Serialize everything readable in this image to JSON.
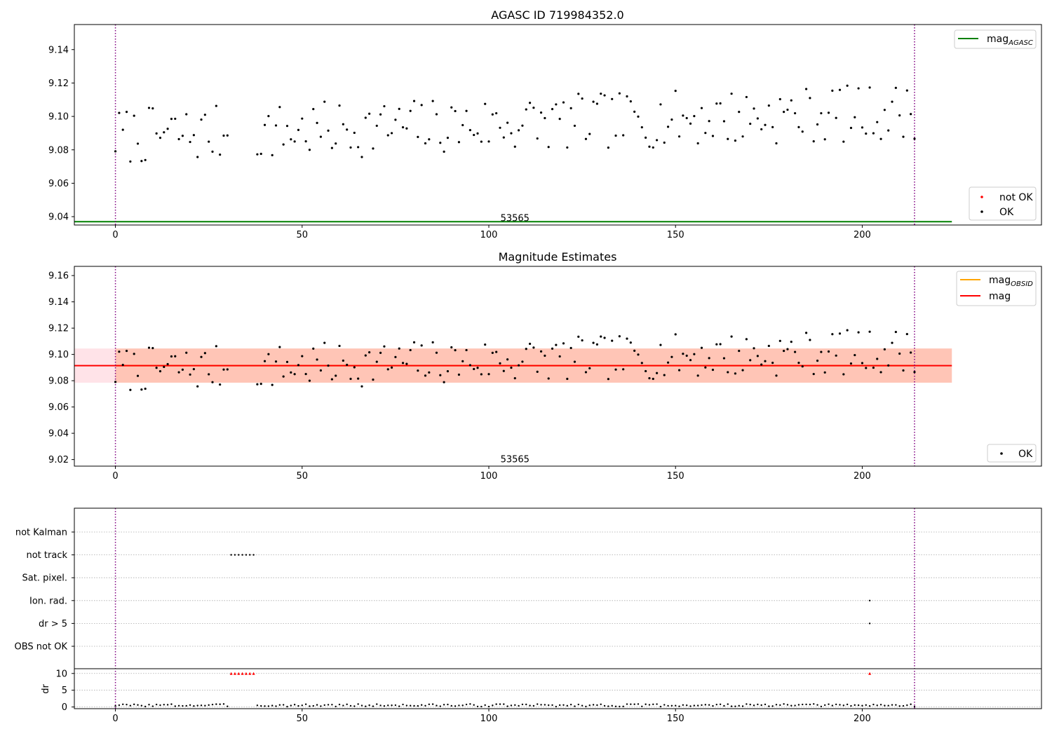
{
  "chart_data": [
    {
      "type": "scatter",
      "title": "AGASC ID 719984352.0",
      "xlim": [
        -11,
        248
      ],
      "ylim": [
        9.035,
        9.155
      ],
      "x_ticks": [
        0,
        50,
        100,
        150,
        200
      ],
      "y_ticks": [
        9.04,
        9.06,
        9.08,
        9.1,
        9.12,
        9.14
      ],
      "y_tick_labels": [
        "9.04",
        "9.06",
        "9.08",
        "9.10",
        "9.12",
        "9.14"
      ],
      "vlines": [
        0,
        214
      ],
      "obsid_label": {
        "text": "53565",
        "x": 107,
        "y": 9.039
      },
      "hline": {
        "name": "mag_AGASC",
        "value": 9.037,
        "x_range": [
          -11,
          224
        ],
        "color": "#008000"
      },
      "legend_lines": [
        {
          "base": "mag",
          "sub": "AGASC",
          "color": "#008000"
        }
      ],
      "legend_markers": [
        {
          "label": "not OK",
          "color": "#ff0000"
        },
        {
          "label": "OK",
          "color": "#000000"
        }
      ],
      "series": [
        {
          "name": "OK",
          "color": "#000000",
          "x_range": [
            0,
            214
          ],
          "x_gap": [
            30,
            38
          ],
          "trend": [
            9.088,
            9.103
          ],
          "seed": 7
        }
      ]
    },
    {
      "type": "scatter",
      "title": "Magnitude Estimates",
      "xlim": [
        -11,
        248
      ],
      "ylim": [
        9.015,
        9.167
      ],
      "x_ticks": [
        0,
        50,
        100,
        150,
        200
      ],
      "y_ticks": [
        9.02,
        9.04,
        9.06,
        9.08,
        9.1,
        9.12,
        9.14,
        9.16
      ],
      "y_tick_labels": [
        "9.02",
        "9.04",
        "9.06",
        "9.08",
        "9.10",
        "9.12",
        "9.14",
        "9.16"
      ],
      "vlines": [
        0,
        214
      ],
      "obsid_label": {
        "text": "53565",
        "x": 107,
        "y": 9.02
      },
      "band_outer": {
        "low": 9.0785,
        "high": 9.1045,
        "x_range": [
          -11,
          224
        ],
        "color": "#ffc0cb"
      },
      "band_inner": {
        "low": 9.0785,
        "high": 9.1045,
        "x_range": [
          0,
          224
        ],
        "color": "#ffa07a"
      },
      "mag_line": {
        "value": 9.0915,
        "x_range": [
          -11,
          224
        ],
        "color": "#ff0000"
      },
      "obsid_line": {
        "value": 9.0915,
        "x_range": [
          0,
          214
        ],
        "color": "#ffa500"
      },
      "legend_lines": [
        {
          "base": "mag",
          "sub": "OBSID",
          "color": "#ffa500"
        },
        {
          "base": "mag",
          "sub": "",
          "color": "#ff0000"
        }
      ],
      "legend_markers": [
        {
          "label": "OK",
          "color": "#000000"
        }
      ],
      "series": [
        {
          "name": "OK",
          "color": "#000000",
          "x_range": [
            0,
            214
          ],
          "x_gap": [
            30,
            38
          ],
          "trend": [
            9.088,
            9.103
          ],
          "seed": 7
        }
      ]
    },
    {
      "type": "scatter",
      "title": "",
      "xlim": [
        -11,
        248
      ],
      "x_ticks": [
        0,
        50,
        100,
        150,
        200
      ],
      "vlines": [
        0,
        214
      ],
      "flag_rows": [
        "not Kalman",
        "not track",
        "Sat. pixel.",
        "Ion. rad.",
        "dr > 5",
        "OBS not OK"
      ],
      "flag_points": [
        {
          "row": "not track",
          "x": [
            31,
            32,
            33,
            34,
            35,
            36,
            37
          ]
        },
        {
          "row": "Ion. rad.",
          "x": [
            202
          ]
        },
        {
          "row": "dr > 5",
          "x": [
            202
          ]
        }
      ],
      "dr_ylabel": "dr",
      "dr_ylim": [
        -0.5,
        11
      ],
      "dr_y_ticks": [
        0,
        5,
        10
      ],
      "dr_clipped": {
        "value": 10,
        "x": [
          31,
          32,
          33,
          34,
          35,
          36,
          37,
          202
        ],
        "color": "#ff0000"
      },
      "dr_series": {
        "x_range": [
          0,
          214
        ],
        "x_gap": [
          30,
          38
        ],
        "typical": 0.5,
        "seed": 3
      }
    }
  ]
}
